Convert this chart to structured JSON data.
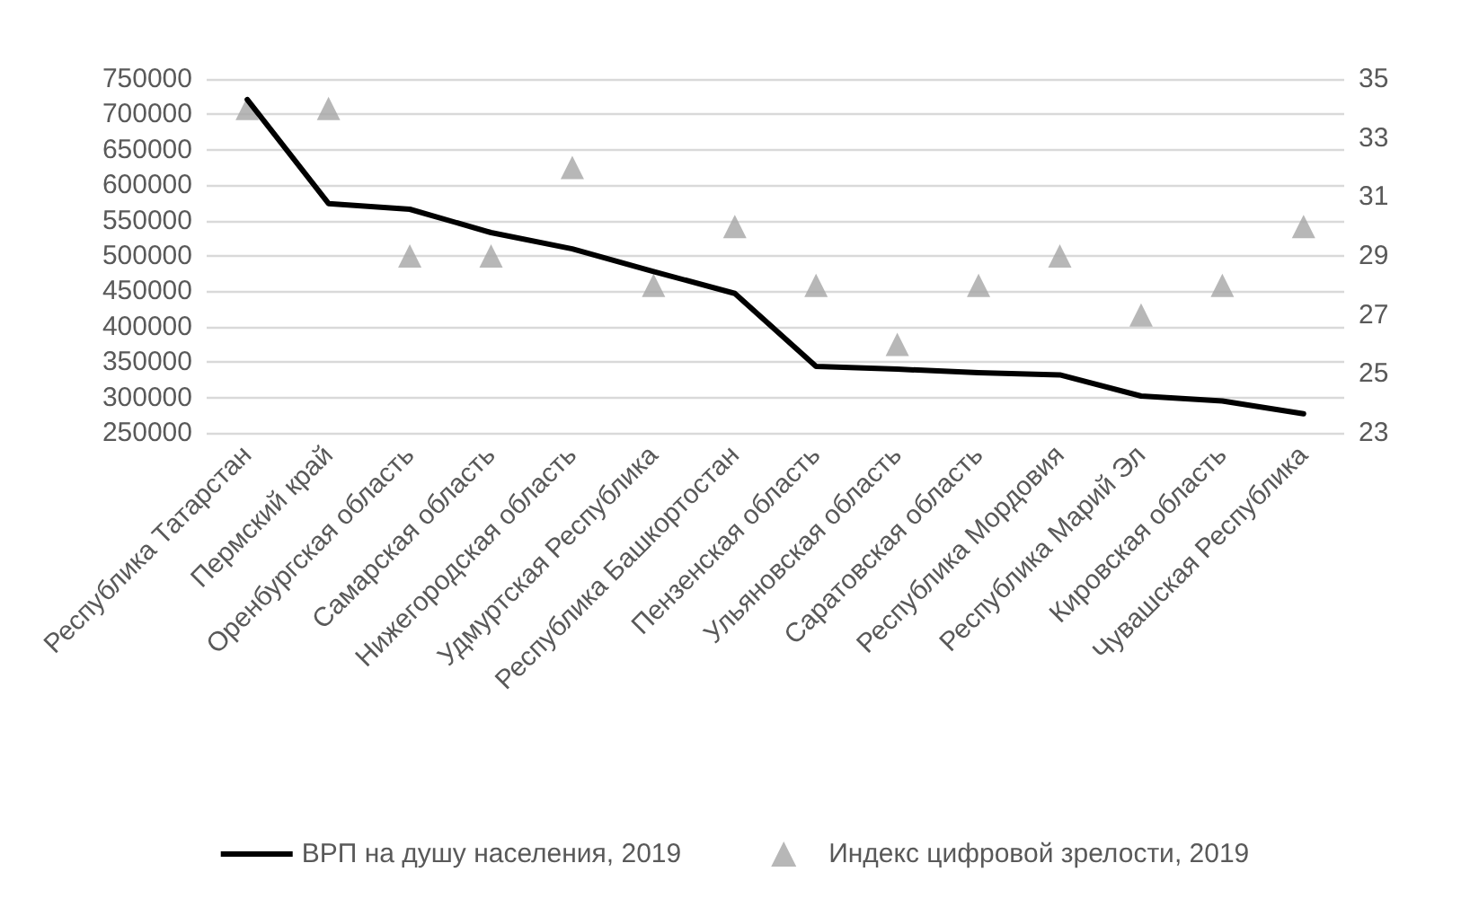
{
  "chart_data": {
    "type": "line",
    "categories": [
      "Республика Татарстан",
      "Пермский край",
      "Оренбургская область",
      "Самарская область",
      "Нижегородская область",
      "Удмуртская Республика",
      "Республика Башкортостан",
      "Пензенская область",
      "Ульяновская область",
      "Саратовская область",
      "Республика Мордовия",
      "Республика Марий Эл",
      "Кировская область",
      "Чувашская Республика"
    ],
    "series": [
      {
        "name": "ВРП на душу населения, 2019",
        "color": "#000000",
        "marker": "none",
        "values": [
          721000,
          574000,
          566000,
          533000,
          510000,
          478000,
          447000,
          344000,
          340000,
          335000,
          332000,
          302000,
          295000,
          277000
        ]
      },
      {
        "name": "Индекс цифровой зрелости, 2019",
        "type": "scatter",
        "axis": "y2",
        "color": "#a5a5a5",
        "marker": "triangle",
        "values": [
          34,
          34,
          29,
          29,
          32,
          28,
          30,
          28,
          26,
          28,
          29,
          27,
          28,
          30
        ]
      }
    ],
    "ylim": [
      250000,
      750000
    ],
    "yticks": [
      250000,
      300000,
      350000,
      400000,
      450000,
      500000,
      550000,
      600000,
      650000,
      700000,
      750000
    ],
    "y2lim": [
      23,
      35
    ],
    "y2ticks": [
      23,
      25,
      27,
      29,
      31,
      33,
      35
    ],
    "grid": "y",
    "legend": "bottom"
  }
}
